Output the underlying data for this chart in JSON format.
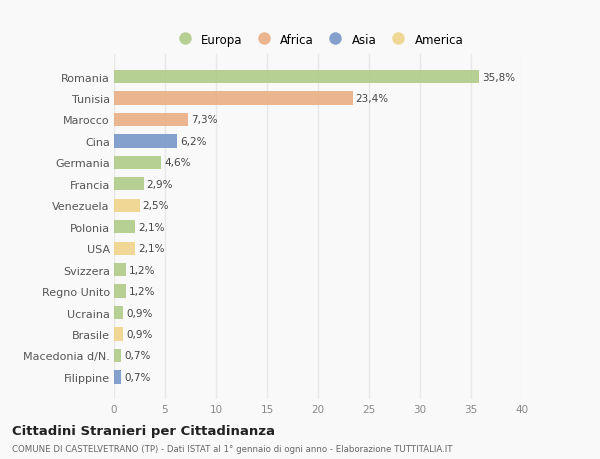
{
  "countries": [
    "Romania",
    "Tunisia",
    "Marocco",
    "Cina",
    "Germania",
    "Francia",
    "Venezuela",
    "Polonia",
    "USA",
    "Svizzera",
    "Regno Unito",
    "Ucraina",
    "Brasile",
    "Macedonia d/N.",
    "Filippine"
  ],
  "values": [
    35.8,
    23.4,
    7.3,
    6.2,
    4.6,
    2.9,
    2.5,
    2.1,
    2.1,
    1.2,
    1.2,
    0.9,
    0.9,
    0.7,
    0.7
  ],
  "labels": [
    "35,8%",
    "23,4%",
    "7,3%",
    "6,2%",
    "4,6%",
    "2,9%",
    "2,5%",
    "2,1%",
    "2,1%",
    "1,2%",
    "1,2%",
    "0,9%",
    "0,9%",
    "0,7%",
    "0,7%"
  ],
  "categories": [
    "Europa",
    "Africa",
    "Africa",
    "Asia",
    "Europa",
    "Europa",
    "America",
    "Europa",
    "America",
    "Europa",
    "Europa",
    "Europa",
    "America",
    "Europa",
    "Asia"
  ],
  "colors": {
    "Europa": "#a8c87e",
    "Africa": "#e8a878",
    "Asia": "#6b8dc4",
    "America": "#efd080"
  },
  "xlim": [
    0,
    40
  ],
  "xticks": [
    0,
    5,
    10,
    15,
    20,
    25,
    30,
    35,
    40
  ],
  "title": "Cittadini Stranieri per Cittadinanza",
  "subtitle": "COMUNE DI CASTELVETRANO (TP) - Dati ISTAT al 1° gennaio di ogni anno - Elaborazione TUTTITALIA.IT",
  "background_color": "#f9f9f9",
  "grid_color": "#e8e8e8",
  "bar_alpha": 0.82,
  "legend_order": [
    "Europa",
    "Africa",
    "Asia",
    "America"
  ]
}
